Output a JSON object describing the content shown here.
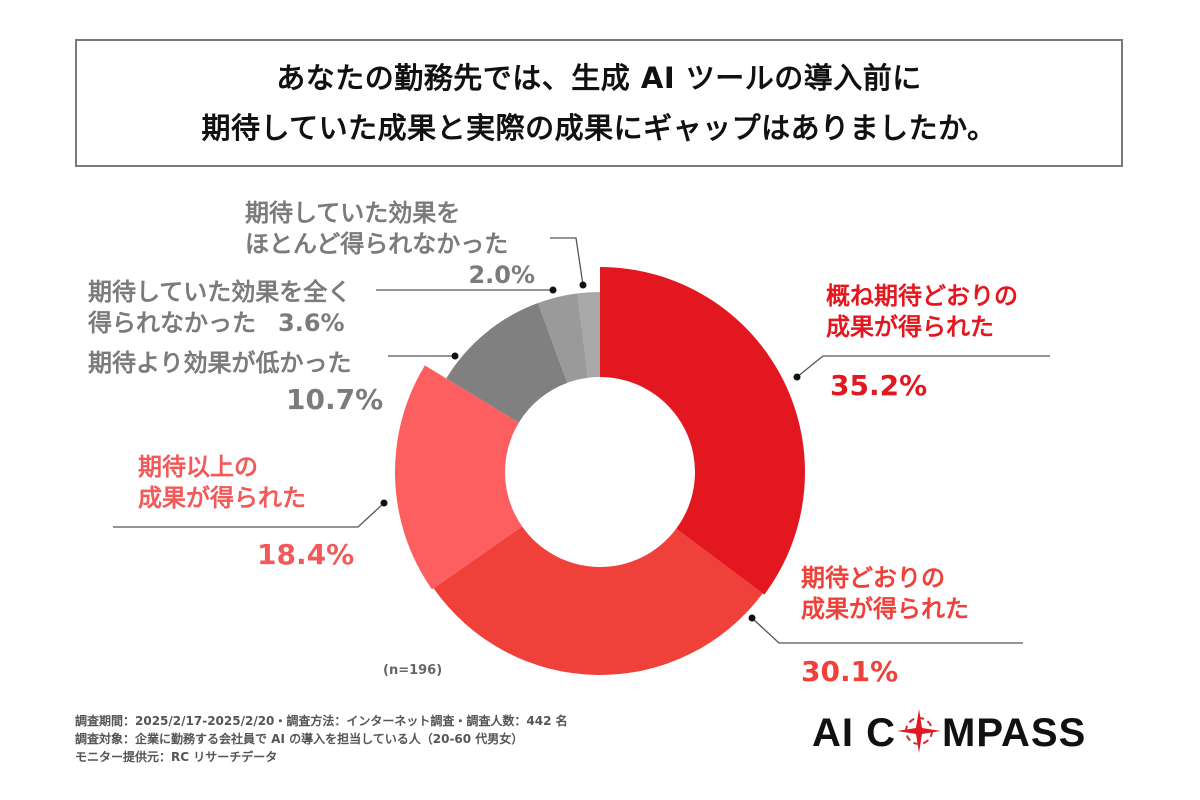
{
  "title": {
    "line1": "あなたの勤務先では、生成 AI ツールの導入前に",
    "line2": "期待していた成果と実際の成果にギャップはありましたか。"
  },
  "chart_data": {
    "type": "pie",
    "subtype": "donut",
    "title": "あなたの勤務先では、生成 AI ツールの導入前に期待していた成果と実際の成果にギャップはありましたか。",
    "categories": [
      "概ね期待どおりの成果が得られた",
      "期待どおりの成果が得られた",
      "期待以上の成果が得られた",
      "期待より効果が低かった",
      "期待していた効果を全く得られなかった",
      "期待していた効果をほとんど得られなかった"
    ],
    "values": [
      35.2,
      30.1,
      18.4,
      10.7,
      3.6,
      2.0
    ],
    "unit": "%",
    "colors": [
      "#e3171f",
      "#f0403a",
      "#fd5e5f",
      "#808080",
      "#9a9a9a",
      "#a8a8a8"
    ],
    "start_angle": "top (12 o'clock), clockwise",
    "sample_size": "n=196",
    "legend": "none (callout labels)"
  },
  "labels": {
    "s1": {
      "line1": "概ね期待どおりの",
      "line2": "成果が得られた",
      "pct": "35.2%"
    },
    "s2": {
      "line1": "期待どおりの",
      "line2": "成果が得られた",
      "pct": "30.1%"
    },
    "s3": {
      "line1": "期待以上の",
      "line2": "成果が得られた",
      "pct": "18.4%"
    },
    "s4": {
      "line1": "期待より効果が低かった",
      "pct": "10.7%"
    },
    "s5": {
      "line1": "期待していた効果を全く",
      "line2": "得られなかった",
      "pct": "3.6%"
    },
    "s6": {
      "line1": "期待していた効果を",
      "line2": "ほとんど得られなかった",
      "pct": "2.0%"
    }
  },
  "n_note": "(n=196)",
  "footer": {
    "line1": "調査期間：2025/2/17-2025/2/20・調査方法：インターネット調査・調査人数：442 名",
    "line2": "調査対象：企業に勤務する会社員で AI の導入を担当している人（20-60 代男女）",
    "line3": "モニター提供元：RC リサーチデータ"
  },
  "logo": {
    "left": "AI C",
    "right": "MPASS"
  }
}
